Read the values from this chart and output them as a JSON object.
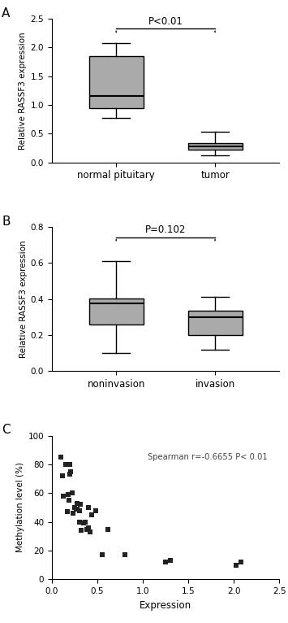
{
  "panel_A": {
    "label": "A",
    "ylabel": "Relative RASSF3 expression",
    "ylim": [
      0,
      2.5
    ],
    "yticks": [
      0.0,
      0.5,
      1.0,
      1.5,
      2.0,
      2.5
    ],
    "categories": [
      "normal pituitary",
      "tumor"
    ],
    "boxes": [
      {
        "median": 1.15,
        "q1": 0.95,
        "q3": 1.85,
        "whislo": 0.78,
        "whishi": 2.08
      },
      {
        "median": 0.28,
        "q1": 0.22,
        "q3": 0.33,
        "whislo": 0.12,
        "whishi": 0.54
      }
    ],
    "pvalue_text": "P<0.01",
    "box_color": "#aaaaaa",
    "box_width": 0.55
  },
  "panel_B": {
    "label": "B",
    "ylabel": "Relative RASSF3 expression",
    "ylim": [
      0,
      0.8
    ],
    "yticks": [
      0.0,
      0.2,
      0.4,
      0.6,
      0.8
    ],
    "categories": [
      "noninvasion",
      "invasion"
    ],
    "boxes": [
      {
        "median": 0.375,
        "q1": 0.26,
        "q3": 0.405,
        "whislo": 0.1,
        "whishi": 0.61
      },
      {
        "median": 0.3,
        "q1": 0.2,
        "q3": 0.335,
        "whislo": 0.12,
        "whishi": 0.41
      }
    ],
    "pvalue_text": "P=0.102",
    "box_color": "#aaaaaa",
    "box_width": 0.55
  },
  "panel_C": {
    "label": "C",
    "xlabel": "Expression",
    "ylabel": "Methylation level (%)",
    "xlim": [
      0,
      2.5
    ],
    "ylim": [
      0,
      100
    ],
    "xticks": [
      0.0,
      0.5,
      1.0,
      1.5,
      2.0,
      2.5
    ],
    "yticks": [
      0,
      20,
      40,
      60,
      80,
      100
    ],
    "annotation": "Spearman r=-0.6655 P< 0.01",
    "scatter_x": [
      0.1,
      0.12,
      0.13,
      0.15,
      0.17,
      0.18,
      0.19,
      0.2,
      0.2,
      0.21,
      0.22,
      0.23,
      0.25,
      0.27,
      0.28,
      0.28,
      0.3,
      0.3,
      0.31,
      0.32,
      0.35,
      0.37,
      0.38,
      0.4,
      0.4,
      0.42,
      0.44,
      0.48,
      0.55,
      0.62,
      0.8,
      1.25,
      1.3,
      2.02,
      2.08
    ],
    "scatter_y": [
      85,
      72,
      58,
      80,
      47,
      59,
      55,
      80,
      73,
      75,
      60,
      46,
      50,
      49,
      49,
      53,
      40,
      48,
      52,
      34,
      39,
      40,
      35,
      50,
      36,
      33,
      45,
      48,
      17,
      35,
      17,
      12,
      13,
      10,
      12
    ],
    "marker_color": "#222222",
    "line_color": "#000000"
  }
}
